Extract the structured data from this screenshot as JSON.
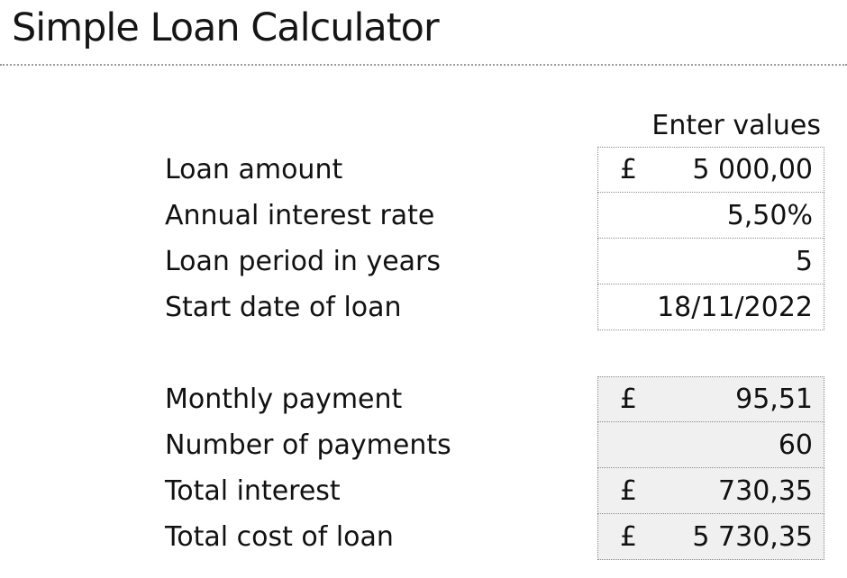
{
  "page": {
    "title": "Simple Loan Calculator"
  },
  "table": {
    "header": "Enter values",
    "input_rows": [
      {
        "label": "Loan amount",
        "currency": "£",
        "value": "5 000,00"
      },
      {
        "label": "Annual interest rate",
        "currency": "",
        "value": "5,50%"
      },
      {
        "label": "Loan period in years",
        "currency": "",
        "value": "5"
      },
      {
        "label": "Start date of loan",
        "currency": "",
        "value": "18/11/2022"
      }
    ],
    "result_rows": [
      {
        "label": "Monthly payment",
        "currency": "£",
        "value": "95,51"
      },
      {
        "label": "Number of payments",
        "currency": "",
        "value": "60"
      },
      {
        "label": "Total interest",
        "currency": "£",
        "value": "730,35"
      },
      {
        "label": "Total cost of loan",
        "currency": "£",
        "value": "5 730,35"
      }
    ]
  },
  "colors": {
    "result_cell_background": "#f0f0f0",
    "cell_border": "#8a8a8a",
    "text": "#111111"
  }
}
